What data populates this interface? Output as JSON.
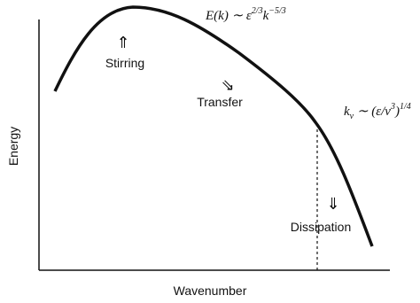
{
  "axes": {
    "y_label": "Energy",
    "x_label": "Wavenumber"
  },
  "annotations": {
    "stirring": {
      "arrow": "⇑",
      "label": "Stirring"
    },
    "transfer": {
      "arrow": "⇘",
      "label": "Transfer"
    },
    "dissipation": {
      "arrow": "⇓",
      "label": "Dissipation"
    },
    "spectrum_law": {
      "lhs": "E(k) ∼ ε",
      "exp1": "2/3",
      "mid": "k",
      "exp2": "−5/3"
    },
    "kolmogorov_scale": {
      "lhs": "k",
      "sub": "ν",
      "mid": " ∼ (ε/ν",
      "exp1": "3",
      "close": ")",
      "exp2": "1/4"
    }
  }
}
